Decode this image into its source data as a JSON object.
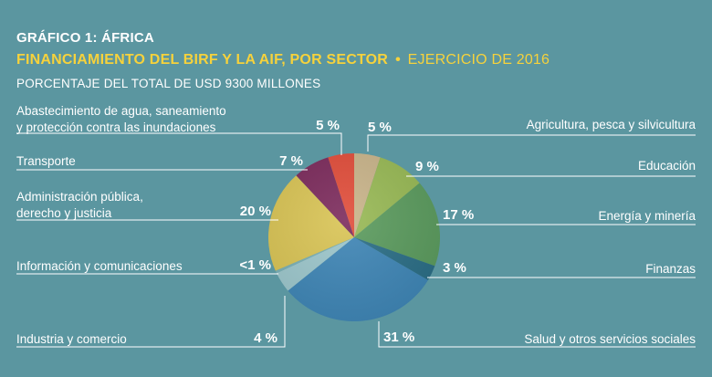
{
  "header": {
    "chart_id": "GRÁFICO 1: ÁFRICA",
    "title": "FINANCIAMIENTO DEL BIRF Y LA AIF, POR SECTOR",
    "separator": "•",
    "fiscal_year": "EJERCICIO DE 2016",
    "subtitle": "PORCENTAJE DEL TOTAL DE USD 9300 MILLONES"
  },
  "chart_data": {
    "type": "pie",
    "title": "FINANCIAMIENTO DEL BIRF Y LA AIF, POR SECTOR",
    "unit": "PORCENTAJE DEL TOTAL DE USD 9300 MILLONES",
    "total": "USD 9300 MILLONES",
    "slices": [
      {
        "label": "Agricultura, pesca y silvicultura",
        "label_lines": [
          "Agricultura, pesca y silvicultura"
        ],
        "display": "5 %",
        "value": 5,
        "color": "#c9b48a"
      },
      {
        "label": "Educación",
        "label_lines": [
          "Educación"
        ],
        "display": "9 %",
        "value": 9,
        "color": "#98b955"
      },
      {
        "label": "Energía y minería",
        "label_lines": [
          "Energía y minería"
        ],
        "display": "17 %",
        "value": 17,
        "color": "#5b9b5e"
      },
      {
        "label": "Finanzas",
        "label_lines": [
          "Finanzas"
        ],
        "display": "3 %",
        "value": 3,
        "color": "#2b6e86"
      },
      {
        "label": "Salud y otros servicios sociales",
        "label_lines": [
          "Salud y otros servicios sociales"
        ],
        "display": "31 %",
        "value": 31,
        "color": "#3f86b6"
      },
      {
        "label": "Industria y comercio",
        "label_lines": [
          "Industria y comercio"
        ],
        "display": "4 %",
        "value": 4,
        "color": "#9dc7cc"
      },
      {
        "label": "Información y comunicaciones",
        "label_lines": [
          "Información y comunicaciones"
        ],
        "display": "<1 %",
        "value": 0.5,
        "color": "#7ab0b6"
      },
      {
        "label": "Administración pública, derecho y justicia",
        "label_lines": [
          "Administración pública,",
          "derecho y justicia"
        ],
        "display": "20 %",
        "value": 20,
        "color": "#d9c455"
      },
      {
        "label": "Transporte",
        "label_lines": [
          "Transporte"
        ],
        "display": "7 %",
        "value": 7,
        "color": "#7c2b5c"
      },
      {
        "label": "Abastecimiento de agua, saneamiento y protección contra las inundaciones",
        "label_lines": [
          "Abastecimiento de agua, saneamiento",
          "y protección contra las inundaciones"
        ],
        "display": "5 %",
        "value": 5,
        "color": "#e14d3a"
      }
    ]
  }
}
